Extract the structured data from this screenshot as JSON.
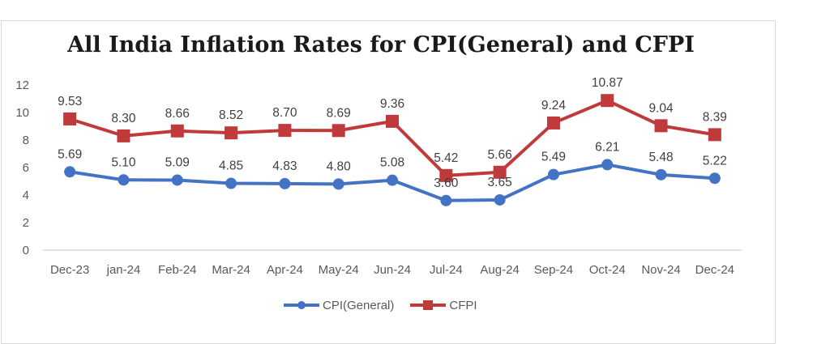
{
  "chart_data": {
    "type": "line",
    "title": "All India Inflation Rates for CPI(General) and CFPI",
    "xlabel": "",
    "ylabel": "",
    "categories": [
      "Dec-23",
      "jan-24",
      "Feb-24",
      "Mar-24",
      "Apr-24",
      "May-24",
      "Jun-24",
      "Jul-24",
      "Aug-24",
      "Sep-24",
      "Oct-24",
      "Nov-24",
      "Dec-24"
    ],
    "ylim": [
      0,
      12
    ],
    "yticks": [
      0,
      2,
      4,
      6,
      8,
      10,
      12
    ],
    "grid": false,
    "legend_position": "bottom",
    "series": [
      {
        "name": "CPI(General)",
        "color": "#4472c4",
        "marker": "circle",
        "values": [
          5.69,
          5.1,
          5.09,
          4.85,
          4.83,
          4.8,
          5.08,
          3.6,
          3.65,
          5.49,
          6.21,
          5.48,
          5.22
        ],
        "labels": [
          "5.69",
          "5.10",
          "5.09",
          "4.85",
          "4.83",
          "4.80",
          "5.08",
          "3.60",
          "3.65",
          "5.49",
          "6.21",
          "5.48",
          "5.22"
        ]
      },
      {
        "name": "CFPI",
        "color": "#c0393b",
        "marker": "square",
        "values": [
          9.53,
          8.3,
          8.66,
          8.52,
          8.7,
          8.69,
          9.36,
          5.42,
          5.66,
          9.24,
          10.87,
          9.04,
          8.39
        ],
        "labels": [
          "9.53",
          "8.30",
          "8.66",
          "8.52",
          "8.70",
          "8.69",
          "9.36",
          "5.42",
          "5.66",
          "9.24",
          "10.87",
          "9.04",
          "8.39"
        ]
      }
    ]
  },
  "legend": {
    "items": [
      {
        "label": "CPI(General)",
        "icon": "line-circle-marker-icon"
      },
      {
        "label": "CFPI",
        "icon": "line-square-marker-icon"
      }
    ]
  }
}
